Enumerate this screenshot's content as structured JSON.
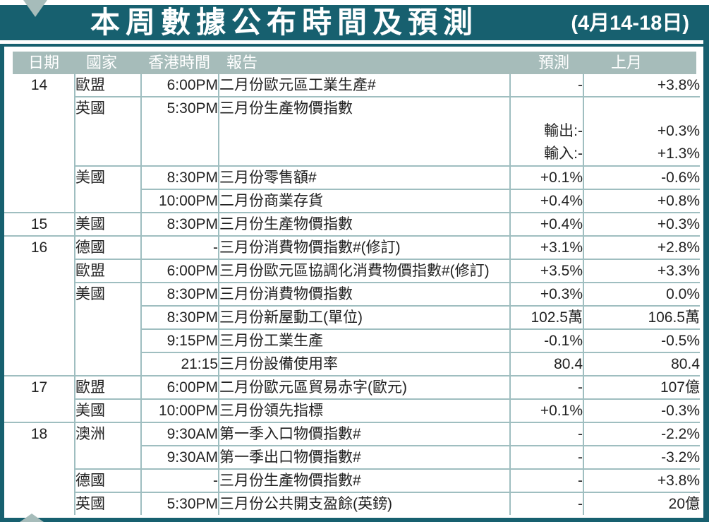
{
  "title": "本周數據公布時間及預測",
  "date_range": "(4月14-18日)",
  "colors": {
    "band_teal": "#17606F",
    "header_sage": "#A6BCBA",
    "grid_line": "#9FBEC0",
    "title_text": "#FFFFFF",
    "body_text": "#222222"
  },
  "table": {
    "headers": {
      "date": "日期",
      "country": "國家",
      "time": "香港時間",
      "report": "報告",
      "forecast": "預測",
      "previous": "上月"
    },
    "rows": [
      {
        "date": "14",
        "date_rowspan": 4,
        "country": "歐盟",
        "country_rowspan": 1,
        "time": "6:00PM",
        "report": "二月份歐元區工業生產#",
        "forecast": "-",
        "previous": "+3.8%"
      },
      {
        "country": "英國",
        "country_rowspan": 1,
        "time": "5:30PM",
        "report": "三月份生產物價指數",
        "forecast": [
          "",
          "輸出:-",
          "輸入:-"
        ],
        "previous": [
          "",
          "+0.3%",
          "+1.3%"
        ]
      },
      {
        "country": "美國",
        "country_rowspan": 2,
        "time": "8:30PM",
        "report": "三月份零售額#",
        "forecast": "+0.1%",
        "previous": "-0.6%"
      },
      {
        "time": "10:00PM",
        "report": "二月份商業存貨",
        "forecast": "+0.4%",
        "previous": "+0.8%"
      },
      {
        "date": "15",
        "date_rowspan": 1,
        "country": "美國",
        "country_rowspan": 1,
        "time": "8:30PM",
        "report": "三月份生產物價指數",
        "forecast": "+0.4%",
        "previous": "+0.3%"
      },
      {
        "date": "16",
        "date_rowspan": 6,
        "country": "德國",
        "country_rowspan": 1,
        "time": "-",
        "report": "三月份消費物價指數#(修訂)",
        "forecast": "+3.1%",
        "previous": "+2.8%"
      },
      {
        "country": "歐盟",
        "country_rowspan": 1,
        "time": "6:00PM",
        "report": "三月份歐元區協調化消費物價指數#(修訂)",
        "forecast": "+3.5%",
        "previous": "+3.3%"
      },
      {
        "country": "美國",
        "country_rowspan": 4,
        "time": "8:30PM",
        "report": "三月份消費物價指數",
        "forecast": "+0.3%",
        "previous": "0.0%"
      },
      {
        "time": "8:30PM",
        "report": "三月份新屋動工(單位)",
        "forecast": "102.5萬",
        "previous": "106.5萬"
      },
      {
        "time": "9:15PM",
        "report": "三月份工業生產",
        "forecast": "-0.1%",
        "previous": "-0.5%"
      },
      {
        "time": "21:15",
        "report": "三月份設備使用率",
        "forecast": "80.4",
        "previous": "80.4"
      },
      {
        "date": "17",
        "date_rowspan": 2,
        "country": "歐盟",
        "country_rowspan": 1,
        "time": "6:00PM",
        "report": "二月份歐元區貿易赤字(歐元)",
        "forecast": "-",
        "previous": "107億"
      },
      {
        "country": "美國",
        "country_rowspan": 1,
        "time": "10:00PM",
        "report": "三月份領先指標",
        "forecast": "+0.1%",
        "previous": "-0.3%"
      },
      {
        "date": "18",
        "date_rowspan": 4,
        "country": "澳洲",
        "country_rowspan": 2,
        "time": "9:30AM",
        "report": "第一季入口物價指數#",
        "forecast": "-",
        "previous": "-2.2%"
      },
      {
        "time": "9:30AM",
        "report": "第一季出口物價指數#",
        "forecast": "-",
        "previous": "-3.2%"
      },
      {
        "country": "德國",
        "country_rowspan": 1,
        "time": "-",
        "report": "三月份生產物價指數#",
        "forecast": "-",
        "previous": "+3.8%"
      },
      {
        "country": "英國",
        "country_rowspan": 1,
        "time": "5:30PM",
        "report": "三月份公共開支盈餘(英鎊)",
        "forecast": "-",
        "previous": "20億"
      }
    ]
  }
}
